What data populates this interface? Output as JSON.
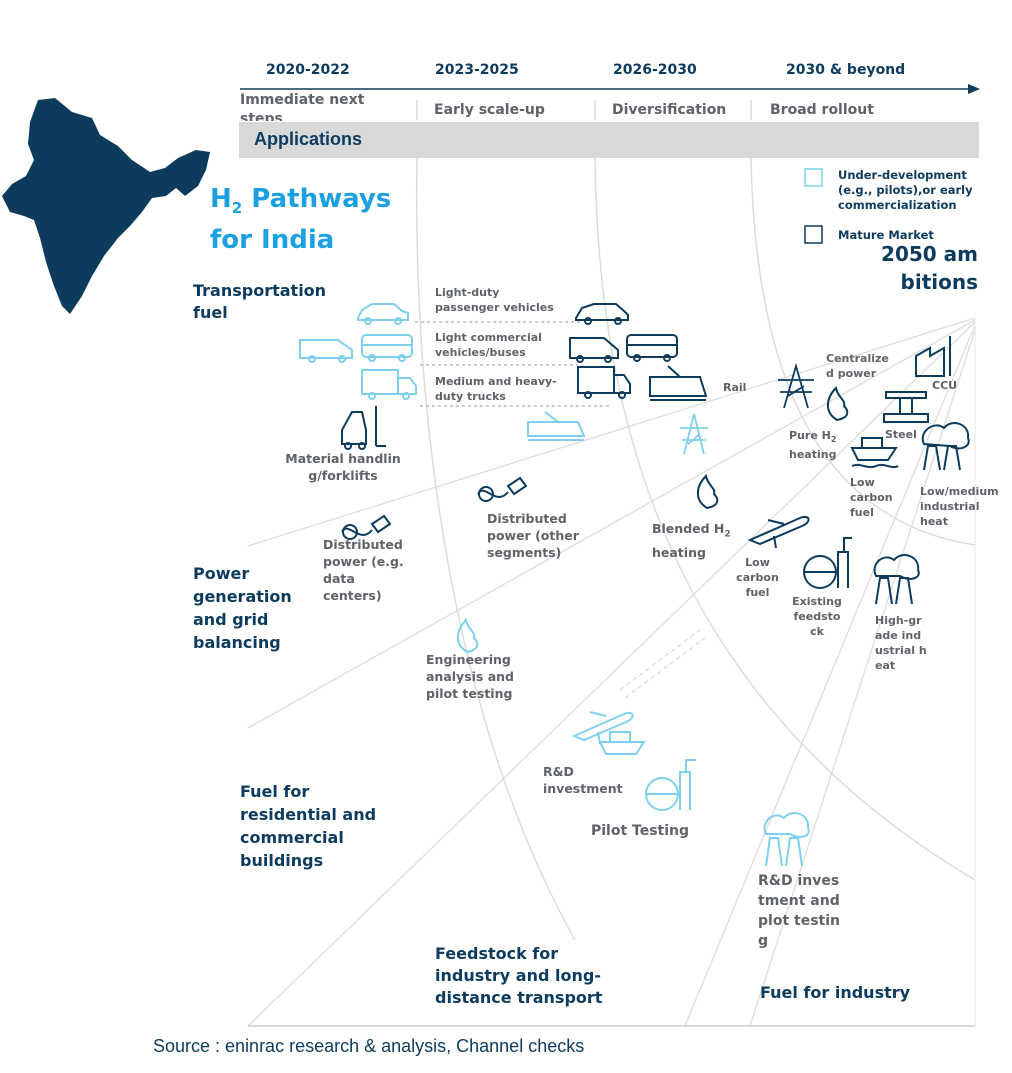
{
  "timeline": {
    "phases": [
      "2020-2022",
      "2023-2025",
      "2026-2030",
      "2030 & beyond"
    ],
    "stages": [
      "Immediate next steps",
      "Early scale-up",
      "Diversification",
      "Broad rollout"
    ]
  },
  "applications_label": "Applications",
  "title_h": "H",
  "title_sub": "2",
  "title_rest": " Pathways",
  "title_line2": "for India",
  "legend": {
    "under_development": "Under-development (e.g., pilots),or early commercialization",
    "mature": "Mature Market"
  },
  "ambitions": "2050 ambitions",
  "categories": {
    "transport": "Transportation fuel",
    "power": "Power generation and grid balancing",
    "residential": "Fuel for residential and commercial buildings",
    "feedstock": "Feedstock for industry and long-distance transport",
    "industry_fuel": "Fuel for industry"
  },
  "labels": {
    "light_duty": "Light-duty passenger vehicles",
    "light_commercial": "Light commercial vehicles/buses",
    "medium_heavy": "Medium and heavy-duty trucks",
    "rail": "Rail",
    "material_handling": "Material handling/forklifts",
    "distributed_dc": "Distributed power (e.g. data centers)",
    "distributed_other": "Distributed power (other segments)",
    "blended_pre": "Blended H",
    "blended_sub": "2",
    "blended_post": " heating",
    "centralized_power": "Centralized power",
    "ccu": "CCU",
    "pure_pre": "Pure H",
    "pure_sub": "2",
    "pure_post": " heating",
    "steel": "Steel",
    "low_carbon_fuel_1": "Low carbon fuel",
    "low_medium_heat": "Low/medium industrial heat",
    "low_carbon_fuel_2": "Low carbon fuel",
    "existing_feedstock": "Existing feedstock",
    "high_grade_heat": "High-grade industrial heat",
    "engineering": "Engineering analysis and pilot testing",
    "rd_investment": "R&D investment",
    "pilot_testing": "Pilot Testing",
    "rd_pilot": "R&D investment and plot testing"
  },
  "source": "Source : eninrac research & analysis, Channel checks",
  "colors": {
    "navy": "#0d3b5e",
    "accent_blue": "#1ba1e2",
    "light_blue": "#7fd0ee",
    "gray_text": "#5f6368",
    "band": "#d9d9d9"
  },
  "icons": [
    "india-map",
    "car-icon",
    "van-icon",
    "bus-icon",
    "truck-icon",
    "train-icon",
    "forklift-icon",
    "plug-icon",
    "flame-icon",
    "pylon-icon",
    "factory-icon",
    "airplane-icon",
    "ship-icon",
    "tank-icon"
  ]
}
